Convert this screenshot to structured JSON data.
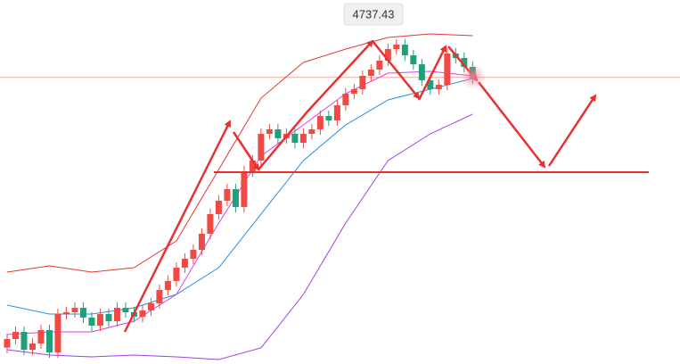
{
  "chart_data": {
    "type": "candlestick",
    "price_label": 4737.43,
    "ylim": [
      4265,
      4865
    ],
    "xlim": [
      -0.84,
      79.5
    ],
    "up_color": "#ef4b44",
    "down_color": "#1fa07a",
    "open": [
      4292.0,
      4306.2,
      4317.9,
      4288.5,
      4298.8,
      4320.9,
      4284.1,
      4347.3,
      4350.3,
      4357.6,
      4341.5,
      4328.2,
      4347.3,
      4335.6,
      4357.6,
      4350.3,
      4342.9,
      4353.2,
      4365.0,
      4387.1,
      4401.8,
      4423.8,
      4438.5,
      4453.2,
      4479.7,
      4512.1,
      4534.1,
      4553.2,
      4523.8,
      4582.6,
      4600.3,
      4644.4,
      4651.8,
      4637.1,
      4644.4,
      4629.7,
      4644.4,
      4651.8,
      4673.8,
      4666.5,
      4691.5,
      4710.6,
      4717.9,
      4740.0,
      4750.3,
      4765.0,
      4784.1,
      4791.5,
      4773.8,
      4759.1,
      4732.6,
      4717.9,
      4725.3,
      4776.8,
      4769.4,
      4754.7
    ],
    "high": [
      4315.2,
      4326.9,
      4326.9,
      4307.8,
      4329.9,
      4329.9,
      4356.3,
      4359.3,
      4366.6,
      4366.6,
      4350.5,
      4356.3,
      4356.3,
      4366.6,
      4366.6,
      4359.3,
      4362.2,
      4374.0,
      4396.1,
      4410.8,
      4432.8,
      4447.5,
      4462.2,
      4488.7,
      4521.1,
      4543.1,
      4562.2,
      4562.2,
      4591.6,
      4609.3,
      4653.4,
      4660.8,
      4660.8,
      4653.4,
      4653.4,
      4653.4,
      4660.8,
      4682.8,
      4682.8,
      4700.5,
      4719.6,
      4726.9,
      4749.0,
      4759.3,
      4774.0,
      4793.1,
      4800.5,
      4800.5,
      4782.8,
      4768.1,
      4741.6,
      4734.3,
      4785.8,
      4785.8,
      4778.4,
      4763.7
    ],
    "low": [
      4283.0,
      4297.2,
      4279.5,
      4279.5,
      4289.8,
      4275.1,
      4275.1,
      4338.3,
      4341.3,
      4332.5,
      4319.2,
      4319.2,
      4326.6,
      4326.6,
      4341.3,
      4333.9,
      4333.9,
      4344.2,
      4356.0,
      4378.1,
      4392.8,
      4414.8,
      4429.5,
      4444.2,
      4470.7,
      4503.1,
      4525.1,
      4514.8,
      4514.8,
      4573.6,
      4591.3,
      4635.4,
      4628.1,
      4628.1,
      4620.7,
      4620.7,
      4635.4,
      4642.8,
      4657.5,
      4657.5,
      4682.5,
      4701.6,
      4708.9,
      4731.0,
      4741.3,
      4756.0,
      4775.1,
      4764.8,
      4750.1,
      4723.6,
      4708.9,
      4708.9,
      4716.3,
      4760.4,
      4745.7,
      4727.0
    ],
    "close": [
      4306.2,
      4317.9,
      4288.5,
      4298.8,
      4320.9,
      4284.1,
      4347.3,
      4350.3,
      4357.6,
      4341.5,
      4328.2,
      4347.3,
      4335.6,
      4357.6,
      4350.3,
      4342.9,
      4353.2,
      4365.0,
      4387.1,
      4401.8,
      4423.8,
      4438.5,
      4453.2,
      4479.7,
      4512.1,
      4534.1,
      4553.2,
      4523.8,
      4582.6,
      4600.3,
      4644.4,
      4651.8,
      4637.1,
      4644.4,
      4629.7,
      4644.4,
      4651.8,
      4673.8,
      4666.5,
      4691.5,
      4710.6,
      4717.9,
      4740.0,
      4750.3,
      4765.0,
      4784.1,
      4791.5,
      4773.8,
      4759.1,
      4732.6,
      4717.9,
      4725.3,
      4776.8,
      4769.4,
      4754.7,
      4736.0
    ],
    "overlays": [
      {
        "color": "#e0392f",
        "x": [
          0,
          5,
          10,
          15,
          20,
          25,
          30,
          35,
          40,
          45,
          50,
          55
        ],
        "values": [
          4416.5,
          4426.8,
          4416.5,
          4423.8,
          4467.9,
          4585.6,
          4703.2,
          4762.1,
          4784.1,
          4803.2,
          4809.1,
          4806.2
        ]
      },
      {
        "color": "#e040e0",
        "x": [
          0,
          5,
          10,
          15,
          20,
          25,
          30,
          35,
          40,
          45,
          50,
          55
        ],
        "values": [
          4313.5,
          4317.9,
          4317.9,
          4335.6,
          4379.7,
          4497.4,
          4607.6,
          4659.1,
          4710.6,
          4744.4,
          4747.4,
          4740.0
        ]
      },
      {
        "color": "#2a8fe0",
        "x": [
          0,
          5,
          10,
          15,
          20,
          25,
          30,
          35,
          40,
          45,
          50,
          55
        ],
        "values": [
          4362.1,
          4347.3,
          4347.3,
          4357.6,
          4379.7,
          4423.8,
          4512.1,
          4600.3,
          4659.1,
          4700.3,
          4717.9,
          4735.6
        ]
      },
      {
        "color": "#a040e8",
        "x": [
          0,
          5,
          10,
          15,
          20,
          25,
          30,
          35,
          40,
          45,
          50,
          55
        ],
        "values": [
          4288.5,
          4279.7,
          4276.8,
          4279.7,
          4276.8,
          4272.4,
          4291.5,
          4379.7,
          4497.4,
          4600.3,
          4644.4,
          4676.8
        ]
      }
    ]
  }
}
